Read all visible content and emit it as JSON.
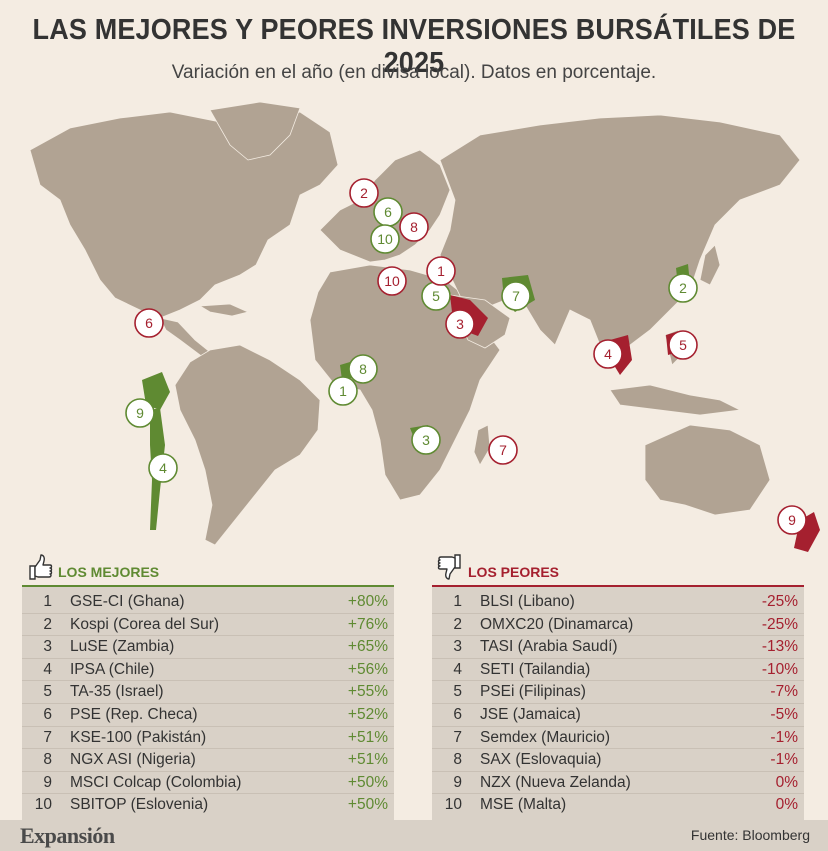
{
  "header": {
    "title": "LAS MEJORES Y PEORES INVERSIONES BURSÁTILES DE 2025",
    "subtitle": "Variación en el año (en divisa local). Datos en porcentaje."
  },
  "colors": {
    "best": "#5f8a32",
    "worst": "#a5202f",
    "land": "#b1a393",
    "background": "#f4ece2",
    "table": "#d9d1c7"
  },
  "map": {
    "best_markers": [
      "1",
      "2",
      "3",
      "4",
      "5",
      "6",
      "7",
      "8",
      "9",
      "10"
    ],
    "worst_markers": [
      "1",
      "2",
      "3",
      "4",
      "5",
      "6",
      "7",
      "8",
      "9",
      "10"
    ]
  },
  "best": {
    "label": "LOS MEJORES",
    "icon": "thumbs-up-icon",
    "rows": [
      {
        "rank": "1",
        "index": "GSE-CI (Ghana)",
        "change": "+80%"
      },
      {
        "rank": "2",
        "index": "Kospi (Corea del Sur)",
        "change": "+76%"
      },
      {
        "rank": "3",
        "index": "LuSE (Zambia)",
        "change": "+65%"
      },
      {
        "rank": "4",
        "index": "IPSA (Chile)",
        "change": "+56%"
      },
      {
        "rank": "5",
        "index": "TA-35 (Israel)",
        "change": "+55%"
      },
      {
        "rank": "6",
        "index": "PSE (Rep. Checa)",
        "change": "+52%"
      },
      {
        "rank": "7",
        "index": "KSE-100 (Pakistán)",
        "change": "+51%"
      },
      {
        "rank": "8",
        "index": "NGX ASI (Nigeria)",
        "change": "+51%"
      },
      {
        "rank": "9",
        "index": "MSCI Colcap (Colombia)",
        "change": "+50%"
      },
      {
        "rank": "10",
        "index": "SBITOP (Eslovenia)",
        "change": "+50%"
      }
    ]
  },
  "worst": {
    "label": "LOS PEORES",
    "icon": "thumbs-down-icon",
    "rows": [
      {
        "rank": "1",
        "index": "BLSI (Libano)",
        "change": "-25%"
      },
      {
        "rank": "2",
        "index": "OMXC20 (Dinamarca)",
        "change": "-25%"
      },
      {
        "rank": "3",
        "index": "TASI (Arabia Saudí)",
        "change": "-13%"
      },
      {
        "rank": "4",
        "index": "SETI (Tailandia)",
        "change": "-10%"
      },
      {
        "rank": "5",
        "index": "PSEi (Filipinas)",
        "change": "-7%"
      },
      {
        "rank": "6",
        "index": "JSE (Jamaica)",
        "change": "-5%"
      },
      {
        "rank": "7",
        "index": "Semdex (Mauricio)",
        "change": "-1%"
      },
      {
        "rank": "8",
        "index": "SAX (Eslovaquia)",
        "change": "-1%"
      },
      {
        "rank": "9",
        "index": "NZX (Nueva Zelanda)",
        "change": "0%"
      },
      {
        "rank": "10",
        "index": "MSE (Malta)",
        "change": "0%"
      }
    ]
  },
  "footer": {
    "brand": "Expansión",
    "source": "Fuente: Bloomberg"
  }
}
